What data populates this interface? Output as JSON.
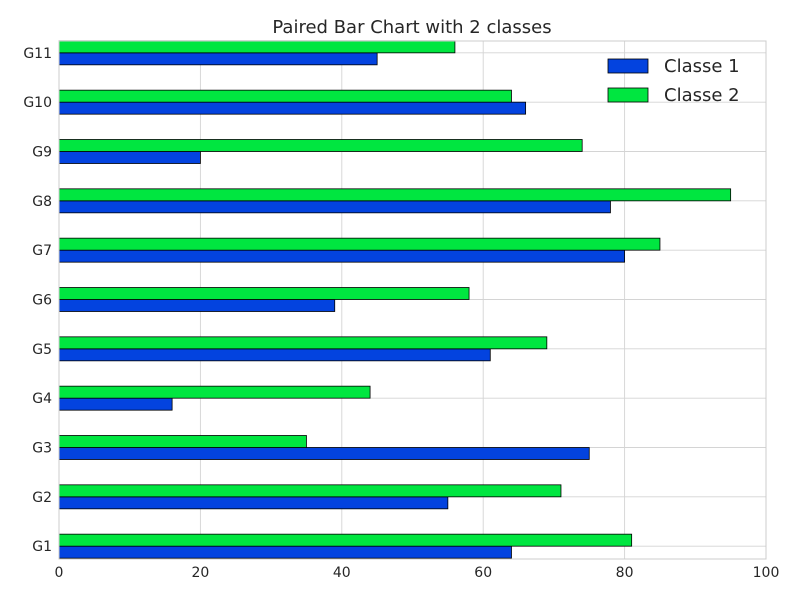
{
  "chart_data": {
    "type": "bar",
    "orientation": "horizontal",
    "title": "Paired Bar Chart with 2 classes",
    "xlabel": "",
    "ylabel": "",
    "xlim": [
      0,
      100
    ],
    "x_ticks": [
      0,
      20,
      40,
      60,
      80,
      100
    ],
    "grid": true,
    "legend_position": "top-right",
    "categories": [
      "G1",
      "G2",
      "G3",
      "G4",
      "G5",
      "G6",
      "G7",
      "G8",
      "G9",
      "G10",
      "G11"
    ],
    "series": [
      {
        "name": "Classe 1",
        "color": "#0343df",
        "values": [
          64,
          55,
          75,
          16,
          61,
          39,
          80,
          78,
          20,
          66,
          45
        ]
      },
      {
        "name": "Classe 2",
        "color": "#00e640",
        "values": [
          81,
          71,
          35,
          44,
          69,
          58,
          85,
          95,
          74,
          64,
          56
        ]
      }
    ]
  }
}
